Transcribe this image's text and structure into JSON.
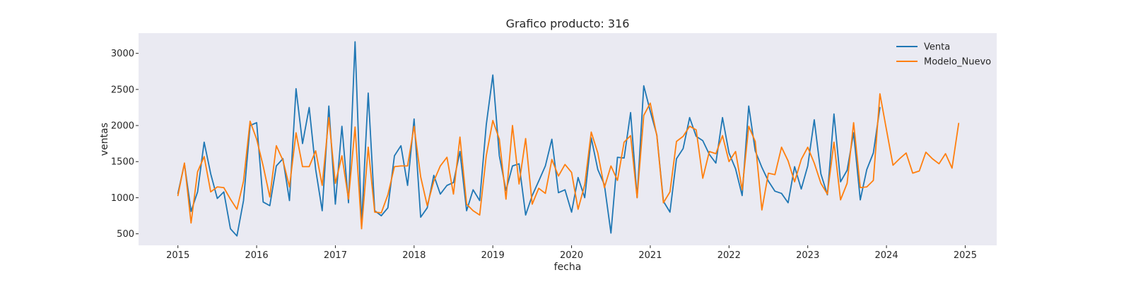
{
  "chart_data": {
    "type": "line",
    "title": "Grafico producto: 316",
    "xlabel": "fecha",
    "ylabel": "ventas",
    "xlim": [
      2014.5,
      2025.4
    ],
    "ylim": [
      340,
      3280
    ],
    "xticks": [
      2015,
      2016,
      2017,
      2018,
      2019,
      2020,
      2021,
      2022,
      2023,
      2024,
      2025
    ],
    "yticks": [
      500,
      1000,
      1500,
      2000,
      2500,
      3000
    ],
    "grid": false,
    "legend_position": "top-right",
    "plot_background": "#eaeaf2",
    "series": [
      {
        "name": "Venta",
        "color": "#1f77b4",
        "x": [
          2015.0,
          2015.083,
          2015.167,
          2015.25,
          2015.333,
          2015.417,
          2015.5,
          2015.583,
          2015.667,
          2015.75,
          2015.833,
          2015.917,
          2016.0,
          2016.083,
          2016.167,
          2016.25,
          2016.333,
          2016.417,
          2016.5,
          2016.583,
          2016.667,
          2016.75,
          2016.833,
          2016.917,
          2017.0,
          2017.083,
          2017.167,
          2017.25,
          2017.333,
          2017.417,
          2017.5,
          2017.583,
          2017.667,
          2017.75,
          2017.833,
          2017.917,
          2018.0,
          2018.083,
          2018.167,
          2018.25,
          2018.333,
          2018.417,
          2018.5,
          2018.583,
          2018.667,
          2018.75,
          2018.833,
          2018.917,
          2019.0,
          2019.083,
          2019.167,
          2019.25,
          2019.333,
          2019.417,
          2019.5,
          2019.583,
          2019.667,
          2019.75,
          2019.833,
          2019.917,
          2020.0,
          2020.083,
          2020.167,
          2020.25,
          2020.333,
          2020.417,
          2020.5,
          2020.583,
          2020.667,
          2020.75,
          2020.833,
          2020.917,
          2021.0,
          2021.083,
          2021.167,
          2021.25,
          2021.333,
          2021.417,
          2021.5,
          2021.583,
          2021.667,
          2021.75,
          2021.833,
          2021.917,
          2022.0,
          2022.083,
          2022.167,
          2022.25,
          2022.333,
          2022.417,
          2022.5,
          2022.583,
          2022.667,
          2022.75,
          2022.833,
          2022.917,
          2023.0,
          2023.083,
          2023.167,
          2023.25,
          2023.333,
          2023.417,
          2023.5,
          2023.583,
          2023.667,
          2023.75,
          2023.833,
          2023.917
        ],
        "values": [
          1060,
          1470,
          810,
          1080,
          1770,
          1330,
          990,
          1080,
          570,
          470,
          960,
          2000,
          2040,
          940,
          890,
          1440,
          1540,
          960,
          2510,
          1750,
          2250,
          1390,
          820,
          2270,
          910,
          1990,
          930,
          3160,
          630,
          2450,
          820,
          750,
          860,
          1580,
          1720,
          1170,
          2090,
          730,
          860,
          1310,
          1050,
          1170,
          1210,
          1640,
          820,
          1110,
          960,
          2010,
          2700,
          1580,
          1100,
          1440,
          1470,
          760,
          1030,
          1230,
          1440,
          1810,
          1070,
          1110,
          800,
          1280,
          1000,
          1830,
          1390,
          1180,
          510,
          1560,
          1550,
          2180,
          1000,
          2550,
          2200,
          1870,
          950,
          800,
          1540,
          1680,
          2110,
          1850,
          1790,
          1600,
          1480,
          2110,
          1620,
          1400,
          1030,
          2270,
          1650,
          1420,
          1230,
          1090,
          1060,
          930,
          1430,
          1120,
          1440,
          2080,
          1330,
          1040,
          2160,
          1220,
          1380,
          1900,
          970,
          1390,
          1620,
          2250
        ]
      },
      {
        "name": "Modelo_Nuevo",
        "color": "#ff7f0e",
        "x": [
          2015.0,
          2015.083,
          2015.167,
          2015.25,
          2015.333,
          2015.417,
          2015.5,
          2015.583,
          2015.667,
          2015.75,
          2015.833,
          2015.917,
          2016.0,
          2016.083,
          2016.167,
          2016.25,
          2016.333,
          2016.417,
          2016.5,
          2016.583,
          2016.667,
          2016.75,
          2016.833,
          2016.917,
          2017.0,
          2017.083,
          2017.167,
          2017.25,
          2017.333,
          2017.417,
          2017.5,
          2017.583,
          2017.667,
          2017.75,
          2017.833,
          2017.917,
          2018.0,
          2018.083,
          2018.167,
          2018.25,
          2018.333,
          2018.417,
          2018.5,
          2018.583,
          2018.667,
          2018.75,
          2018.833,
          2018.917,
          2019.0,
          2019.083,
          2019.167,
          2019.25,
          2019.333,
          2019.417,
          2019.5,
          2019.583,
          2019.667,
          2019.75,
          2019.833,
          2019.917,
          2020.0,
          2020.083,
          2020.167,
          2020.25,
          2020.333,
          2020.417,
          2020.5,
          2020.583,
          2020.667,
          2020.75,
          2020.833,
          2020.917,
          2021.0,
          2021.083,
          2021.167,
          2021.25,
          2021.333,
          2021.417,
          2021.5,
          2021.583,
          2021.667,
          2021.75,
          2021.833,
          2021.917,
          2022.0,
          2022.083,
          2022.167,
          2022.25,
          2022.333,
          2022.417,
          2022.5,
          2022.583,
          2022.667,
          2022.75,
          2022.833,
          2022.917,
          2023.0,
          2023.083,
          2023.167,
          2023.25,
          2023.333,
          2023.417,
          2023.5,
          2023.583,
          2023.667,
          2023.75,
          2023.833,
          2023.917,
          2024.0,
          2024.083,
          2024.167,
          2024.25,
          2024.333,
          2024.417,
          2024.5,
          2024.583,
          2024.667,
          2024.75,
          2024.833,
          2024.917
        ],
        "values": [
          1030,
          1480,
          650,
          1360,
          1570,
          1080,
          1150,
          1140,
          980,
          840,
          1230,
          2060,
          1810,
          1440,
          1010,
          1720,
          1520,
          1150,
          1900,
          1430,
          1430,
          1650,
          1170,
          2110,
          1200,
          1580,
          980,
          1980,
          570,
          1700,
          800,
          790,
          1040,
          1430,
          1440,
          1440,
          1990,
          1290,
          890,
          1230,
          1440,
          1560,
          1050,
          1840,
          910,
          820,
          760,
          1580,
          2070,
          1810,
          980,
          2000,
          1190,
          1820,
          910,
          1130,
          1060,
          1530,
          1300,
          1460,
          1350,
          840,
          1180,
          1910,
          1620,
          1140,
          1440,
          1240,
          1770,
          1860,
          1000,
          2140,
          2310,
          1860,
          930,
          1080,
          1780,
          1850,
          1990,
          1940,
          1270,
          1640,
          1610,
          1860,
          1500,
          1640,
          1110,
          1990,
          1780,
          830,
          1340,
          1320,
          1700,
          1510,
          1220,
          1530,
          1700,
          1480,
          1200,
          1050,
          1770,
          970,
          1200,
          2040,
          1140,
          1150,
          1240,
          2440,
          1940,
          1450,
          1540,
          1620,
          1340,
          1370,
          1630,
          1540,
          1470,
          1610,
          1410,
          2030
        ]
      }
    ]
  }
}
